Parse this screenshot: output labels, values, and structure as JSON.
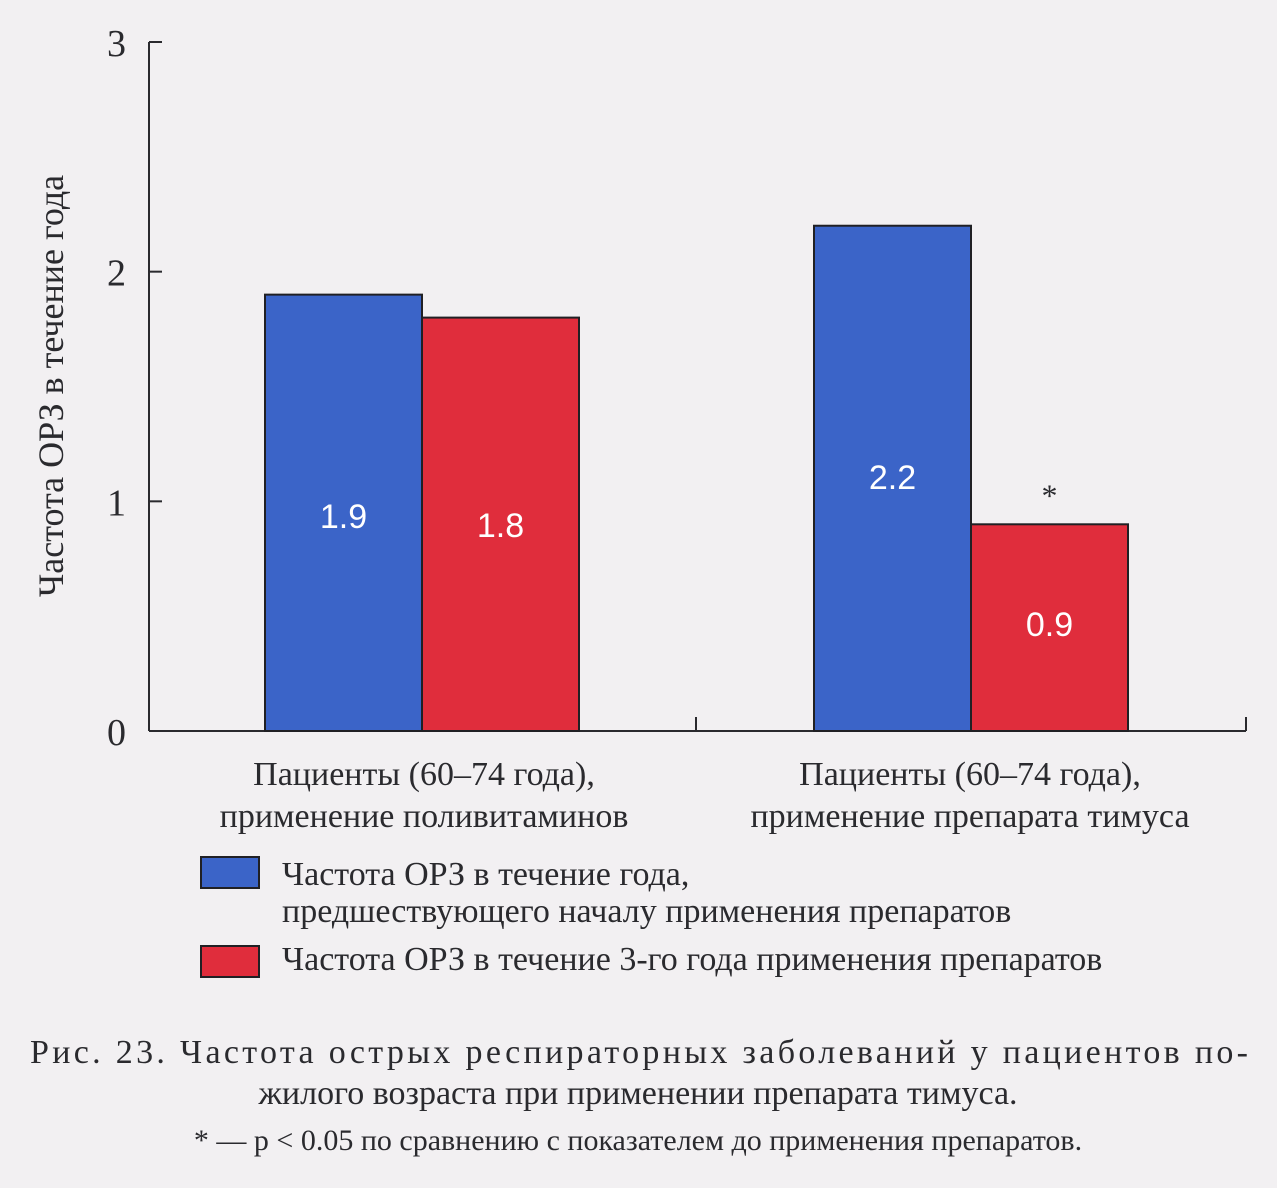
{
  "chart_data": {
    "type": "bar",
    "ylabel": "Частота ОРЗ в течение года",
    "xlabel": "",
    "ylim": [
      0,
      3
    ],
    "yticks": [
      0,
      1,
      2,
      3
    ],
    "categories": [
      [
        "Пациенты (60–74 года),",
        "применение поливитаминов"
      ],
      [
        "Пациенты (60–74 года),",
        "применение препарата тимуса"
      ]
    ],
    "series": [
      {
        "name": [
          "Частота ОРЗ в течение года,",
          "предшествующего началу применения препаратов"
        ],
        "color": "#3b64c8",
        "values": [
          1.9,
          2.2
        ],
        "labels": [
          "1.9",
          "2.2"
        ]
      },
      {
        "name": [
          "Частота ОРЗ в течение 3-го года применения препаратов"
        ],
        "color": "#e02d3c",
        "values": [
          1.8,
          0.9
        ],
        "labels": [
          "1.8",
          "0.9"
        ]
      }
    ],
    "annotations": [
      {
        "text": "*",
        "category_index": 1,
        "series_index": 1
      }
    ],
    "grid": false,
    "legend": "bottom"
  },
  "caption": {
    "lines": [
      "Рис. 23. Частота острых респираторных заболеваний у пациентов по-",
      "жилого возраста при применении препарата тимуса."
    ],
    "footnote": "* — p < 0.05 по сравнению с показателем до применения препаратов."
  },
  "colors": {
    "bar_blue": "#3b64c8",
    "bar_red": "#e02d3c",
    "axis": "#2a2a2e",
    "background": "#f2f0f2"
  }
}
